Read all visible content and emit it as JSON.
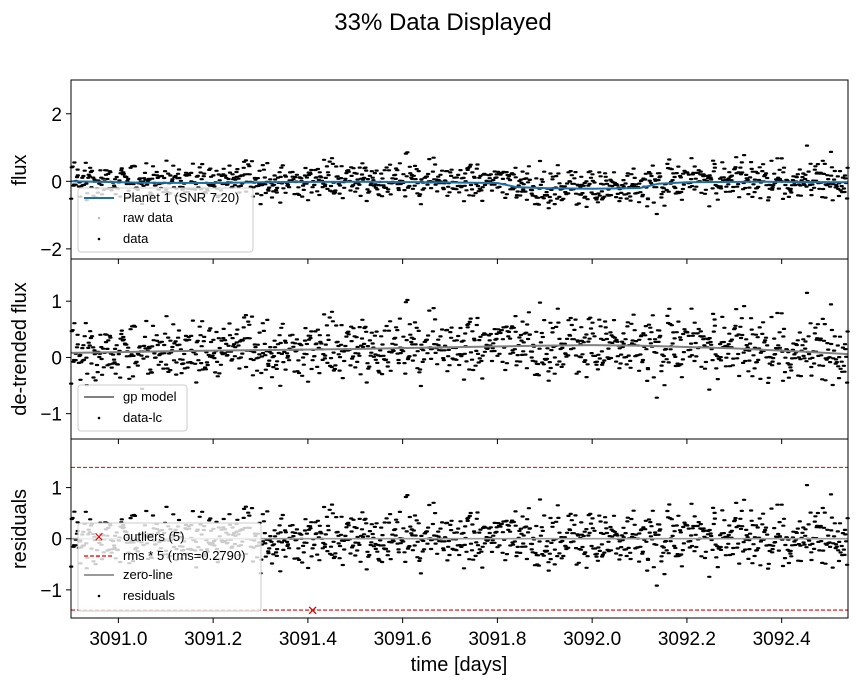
{
  "figure": {
    "title": "33% Data Displayed"
  },
  "chart_data": [
    {
      "type": "scatter",
      "panel": "top",
      "ylabel": "flux",
      "xlim": [
        3090.9,
        3092.54
      ],
      "ylim": [
        -2.3,
        3.0
      ],
      "yticks": [
        -2,
        0,
        2
      ],
      "ytick_labels": [
        "−2",
        "0",
        "2"
      ],
      "legend": {
        "position": "lower-left",
        "entries": [
          "Planet 1 (SNR 7.20)",
          "raw data",
          "data"
        ]
      },
      "model": {
        "name": "Planet 1 (SNR 7.20)",
        "color": "#1f6fa4",
        "x": [
          3090.9,
          3091.05,
          3091.2,
          3091.35,
          3091.5,
          3091.65,
          3091.8,
          3091.84,
          3091.9,
          3092.0,
          3092.1,
          3092.14,
          3092.2,
          3092.35,
          3092.54
        ],
        "y": [
          0.0,
          -0.04,
          -0.05,
          -0.02,
          -0.01,
          -0.03,
          -0.05,
          -0.17,
          -0.2,
          -0.22,
          -0.2,
          -0.07,
          -0.03,
          -0.01,
          -0.03
        ]
      },
      "scatter_color": "#000000",
      "raw_color": "#bfbfbf"
    },
    {
      "type": "scatter",
      "panel": "middle",
      "ylabel": "de-trended flux",
      "xlim": [
        3090.9,
        3092.54
      ],
      "ylim": [
        -1.45,
        1.75
      ],
      "yticks": [
        -1,
        0,
        1
      ],
      "ytick_labels": [
        "−1",
        "0",
        "1"
      ],
      "legend": {
        "position": "lower-left",
        "entries": [
          "gp model",
          "data-lc"
        ]
      },
      "model": {
        "name": "gp model",
        "color": "#808080",
        "x": [
          3090.9,
          3091.1,
          3091.3,
          3091.5,
          3091.7,
          3091.9,
          3092.0,
          3092.1,
          3092.3,
          3092.45,
          3092.54
        ],
        "y": [
          0.08,
          0.11,
          0.13,
          0.15,
          0.18,
          0.21,
          0.22,
          0.21,
          0.16,
          0.1,
          0.06
        ]
      },
      "scatter_color": "#000000"
    },
    {
      "type": "scatter",
      "panel": "bottom",
      "ylabel": "residuals",
      "xlabel": "time [days]",
      "xlim": [
        3090.9,
        3092.54
      ],
      "ylim": [
        -1.55,
        1.95
      ],
      "yticks": [
        -1,
        0,
        1
      ],
      "ytick_labels": [
        "−1",
        "0",
        "1"
      ],
      "xticks": [
        3091.0,
        3091.2,
        3091.4,
        3091.6,
        3091.8,
        3092.0,
        3092.2,
        3092.4
      ],
      "xtick_labels": [
        "3091.0",
        "3091.2",
        "3091.4",
        "3091.6",
        "3091.8",
        "3092.0",
        "3092.2",
        "3092.4"
      ],
      "legend": {
        "position": "lower-left",
        "entries": [
          "outliers (5)",
          "rms * 5 (rms=0.2790)",
          "zero-line",
          "residuals"
        ]
      },
      "rms_lines": [
        1.395,
        -1.395
      ],
      "rms_color": "#e00000",
      "outliers": [
        {
          "x": 3091.41,
          "y": -1.4
        }
      ],
      "zero_line_color": "#9a9a9a",
      "scatter_color": "#000000"
    }
  ]
}
